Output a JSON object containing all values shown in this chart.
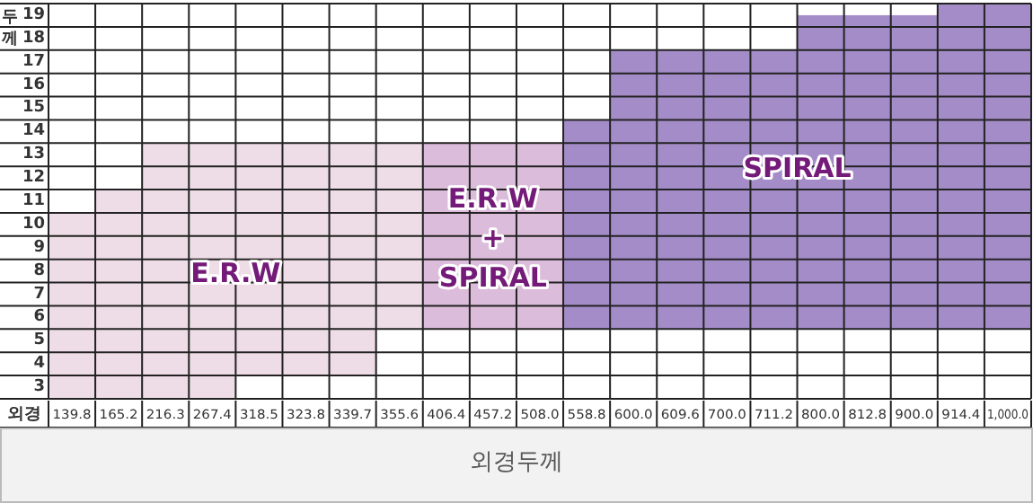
{
  "chart_data": {
    "type": "bar",
    "ylabel": "두께",
    "xlabel": "외경",
    "annotations": [
      "외경두께"
    ],
    "categories": [
      "139.8",
      "165.2",
      "216.3",
      "267.4",
      "318.5",
      "323.8",
      "339.7",
      "355.6",
      "406.4",
      "457.2",
      "508.0",
      "558.8",
      "600.0",
      "609.6",
      "700.0",
      "711.2",
      "800.0",
      "812.8",
      "900.0",
      "914.4",
      "1,000.0"
    ],
    "ylim": [
      2,
      19
    ],
    "yticks": [
      3,
      4,
      5,
      6,
      7,
      8,
      9,
      10,
      11,
      12,
      13,
      14,
      15,
      16,
      17,
      18,
      19
    ],
    "grid": true,
    "legend": false,
    "series": [
      {
        "name": "E.R.W",
        "color": "#eedde6",
        "base": [
          2,
          2,
          2,
          2,
          3,
          3,
          3,
          5,
          null,
          null,
          null,
          null,
          null,
          null,
          null,
          null,
          null,
          null,
          null,
          null,
          null
        ],
        "values": [
          8,
          9,
          11,
          11,
          10,
          10,
          10,
          8,
          null,
          null,
          null,
          null,
          null,
          null,
          null,
          null,
          null,
          null,
          null,
          null,
          null
        ]
      },
      {
        "name": "E.R.W + SPIRAL",
        "color": "#dcbcdb",
        "base": [
          null,
          null,
          null,
          null,
          null,
          null,
          null,
          null,
          5,
          5,
          5,
          null,
          null,
          null,
          null,
          null,
          null,
          null,
          null,
          null,
          null
        ],
        "values": [
          null,
          null,
          null,
          null,
          null,
          null,
          null,
          null,
          8,
          8,
          8,
          null,
          null,
          null,
          null,
          null,
          null,
          null,
          null,
          null,
          null
        ]
      },
      {
        "name": "SPIRAL",
        "color": "#a48cc8",
        "base": [
          null,
          null,
          null,
          null,
          null,
          null,
          null,
          null,
          null,
          null,
          null,
          5,
          5,
          5,
          5,
          5,
          5,
          5,
          5,
          5,
          5
        ],
        "values": [
          null,
          null,
          null,
          null,
          null,
          null,
          null,
          null,
          null,
          null,
          null,
          9,
          12,
          12,
          12,
          12,
          13.5,
          13.5,
          13.5,
          14,
          14
        ]
      }
    ]
  }
}
